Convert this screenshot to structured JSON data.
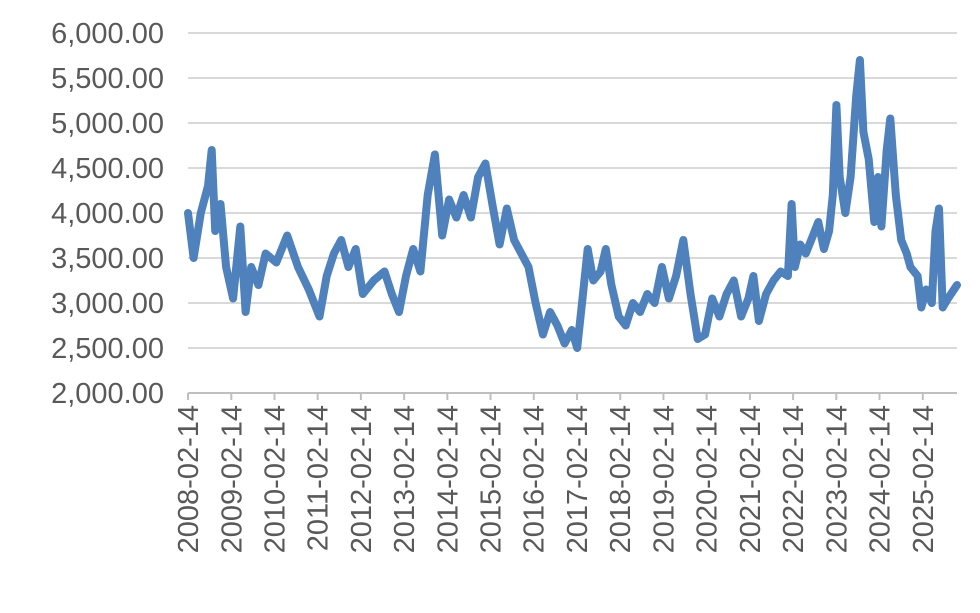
{
  "chart_data": {
    "type": "line",
    "title": "",
    "xlabel": "",
    "ylabel": "",
    "ylim": [
      2000,
      6000
    ],
    "y_ticks": [
      2000,
      2500,
      3000,
      3500,
      4000,
      4500,
      5000,
      5500,
      6000
    ],
    "y_tick_labels": [
      "2,000.00",
      "2,500.00",
      "3,000.00",
      "3,500.00",
      "4,000.00",
      "4,500.00",
      "5,000.00",
      "5,500.00",
      "6,000.00"
    ],
    "x_range": [
      "2008-02-14",
      "2025-11-30"
    ],
    "x_tick_labels": [
      "2008-02-14",
      "2009-02-14",
      "2010-02-14",
      "2011-02-14",
      "2012-02-14",
      "2013-02-14",
      "2014-02-14",
      "2015-02-14",
      "2016-02-14",
      "2017-02-14",
      "2018-02-14",
      "2019-02-14",
      "2020-02-14",
      "2021-02-14",
      "2022-02-14",
      "2023-02-14",
      "2024-02-14",
      "2025-02-14"
    ],
    "grid": true,
    "legend": "none",
    "colors": {
      "line": "#4f81bd",
      "grid": "#d9d9d9",
      "axis": "#bfbfbf",
      "text": "#595959"
    },
    "series": [
      {
        "points": [
          [
            "2008-02-14",
            4000
          ],
          [
            "2008-04-01",
            3500
          ],
          [
            "2008-06-01",
            4000
          ],
          [
            "2008-08-01",
            4300
          ],
          [
            "2008-09-01",
            4700
          ],
          [
            "2008-10-01",
            3800
          ],
          [
            "2008-11-15",
            4100
          ],
          [
            "2009-01-01",
            3400
          ],
          [
            "2009-03-01",
            3050
          ],
          [
            "2009-05-01",
            3850
          ],
          [
            "2009-06-15",
            2900
          ],
          [
            "2009-08-01",
            3400
          ],
          [
            "2009-10-01",
            3200
          ],
          [
            "2009-12-01",
            3550
          ],
          [
            "2010-03-01",
            3450
          ],
          [
            "2010-06-01",
            3750
          ],
          [
            "2010-09-01",
            3400
          ],
          [
            "2010-12-01",
            3150
          ],
          [
            "2011-03-01",
            2850
          ],
          [
            "2011-05-01",
            3300
          ],
          [
            "2011-07-01",
            3550
          ],
          [
            "2011-09-01",
            3700
          ],
          [
            "2011-11-01",
            3400
          ],
          [
            "2012-01-01",
            3600
          ],
          [
            "2012-03-01",
            3100
          ],
          [
            "2012-06-01",
            3250
          ],
          [
            "2012-09-01",
            3350
          ],
          [
            "2012-11-01",
            3100
          ],
          [
            "2013-01-01",
            2900
          ],
          [
            "2013-03-01",
            3300
          ],
          [
            "2013-05-01",
            3600
          ],
          [
            "2013-07-01",
            3350
          ],
          [
            "2013-09-01",
            4200
          ],
          [
            "2013-11-01",
            4650
          ],
          [
            "2014-01-01",
            3750
          ],
          [
            "2014-03-01",
            4150
          ],
          [
            "2014-05-01",
            3950
          ],
          [
            "2014-07-01",
            4200
          ],
          [
            "2014-09-01",
            3950
          ],
          [
            "2014-11-01",
            4400
          ],
          [
            "2015-01-01",
            4550
          ],
          [
            "2015-03-01",
            4100
          ],
          [
            "2015-05-01",
            3650
          ],
          [
            "2015-07-01",
            4050
          ],
          [
            "2015-09-01",
            3700
          ],
          [
            "2015-11-01",
            3550
          ],
          [
            "2016-01-01",
            3400
          ],
          [
            "2016-03-01",
            3000
          ],
          [
            "2016-05-01",
            2650
          ],
          [
            "2016-07-01",
            2900
          ],
          [
            "2016-09-01",
            2750
          ],
          [
            "2016-11-01",
            2550
          ],
          [
            "2017-01-01",
            2700
          ],
          [
            "2017-02-15",
            2500
          ],
          [
            "2017-04-01",
            3050
          ],
          [
            "2017-05-15",
            3600
          ],
          [
            "2017-07-01",
            3250
          ],
          [
            "2017-09-01",
            3350
          ],
          [
            "2017-10-15",
            3600
          ],
          [
            "2017-12-01",
            3200
          ],
          [
            "2018-02-01",
            2850
          ],
          [
            "2018-04-01",
            2750
          ],
          [
            "2018-06-01",
            3000
          ],
          [
            "2018-08-01",
            2900
          ],
          [
            "2018-10-01",
            3100
          ],
          [
            "2018-12-01",
            3000
          ],
          [
            "2019-02-01",
            3400
          ],
          [
            "2019-04-01",
            3050
          ],
          [
            "2019-06-01",
            3300
          ],
          [
            "2019-08-01",
            3700
          ],
          [
            "2019-10-01",
            3100
          ],
          [
            "2019-12-01",
            2600
          ],
          [
            "2020-02-01",
            2650
          ],
          [
            "2020-04-01",
            3050
          ],
          [
            "2020-06-01",
            2850
          ],
          [
            "2020-08-01",
            3100
          ],
          [
            "2020-10-01",
            3250
          ],
          [
            "2020-12-01",
            2850
          ],
          [
            "2021-02-01",
            3050
          ],
          [
            "2021-03-15",
            3300
          ],
          [
            "2021-05-01",
            2800
          ],
          [
            "2021-07-01",
            3100
          ],
          [
            "2021-09-01",
            3250
          ],
          [
            "2021-11-01",
            3350
          ],
          [
            "2022-01-01",
            3300
          ],
          [
            "2022-02-01",
            4100
          ],
          [
            "2022-03-01",
            3400
          ],
          [
            "2022-04-15",
            3650
          ],
          [
            "2022-06-01",
            3550
          ],
          [
            "2022-08-01",
            3750
          ],
          [
            "2022-09-15",
            3900
          ],
          [
            "2022-11-01",
            3600
          ],
          [
            "2022-12-15",
            3800
          ],
          [
            "2023-01-15",
            4200
          ],
          [
            "2023-02-15",
            5200
          ],
          [
            "2023-03-15",
            4400
          ],
          [
            "2023-05-01",
            4000
          ],
          [
            "2023-06-15",
            4400
          ],
          [
            "2023-08-01",
            5300
          ],
          [
            "2023-09-01",
            5700
          ],
          [
            "2023-10-01",
            4900
          ],
          [
            "2023-11-15",
            4600
          ],
          [
            "2024-01-01",
            3900
          ],
          [
            "2024-02-01",
            4400
          ],
          [
            "2024-03-01",
            3850
          ],
          [
            "2024-04-15",
            4700
          ],
          [
            "2024-05-15",
            5050
          ],
          [
            "2024-07-01",
            4200
          ],
          [
            "2024-08-15",
            3700
          ],
          [
            "2024-10-01",
            3550
          ],
          [
            "2024-11-01",
            3400
          ],
          [
            "2025-01-01",
            3300
          ],
          [
            "2025-02-01",
            2950
          ],
          [
            "2025-03-15",
            3150
          ],
          [
            "2025-05-01",
            3000
          ],
          [
            "2025-06-01",
            3800
          ],
          [
            "2025-07-01",
            4050
          ],
          [
            "2025-08-01",
            2950
          ],
          [
            "2025-09-15",
            3050
          ],
          [
            "2025-11-30",
            3200
          ]
        ]
      }
    ]
  }
}
